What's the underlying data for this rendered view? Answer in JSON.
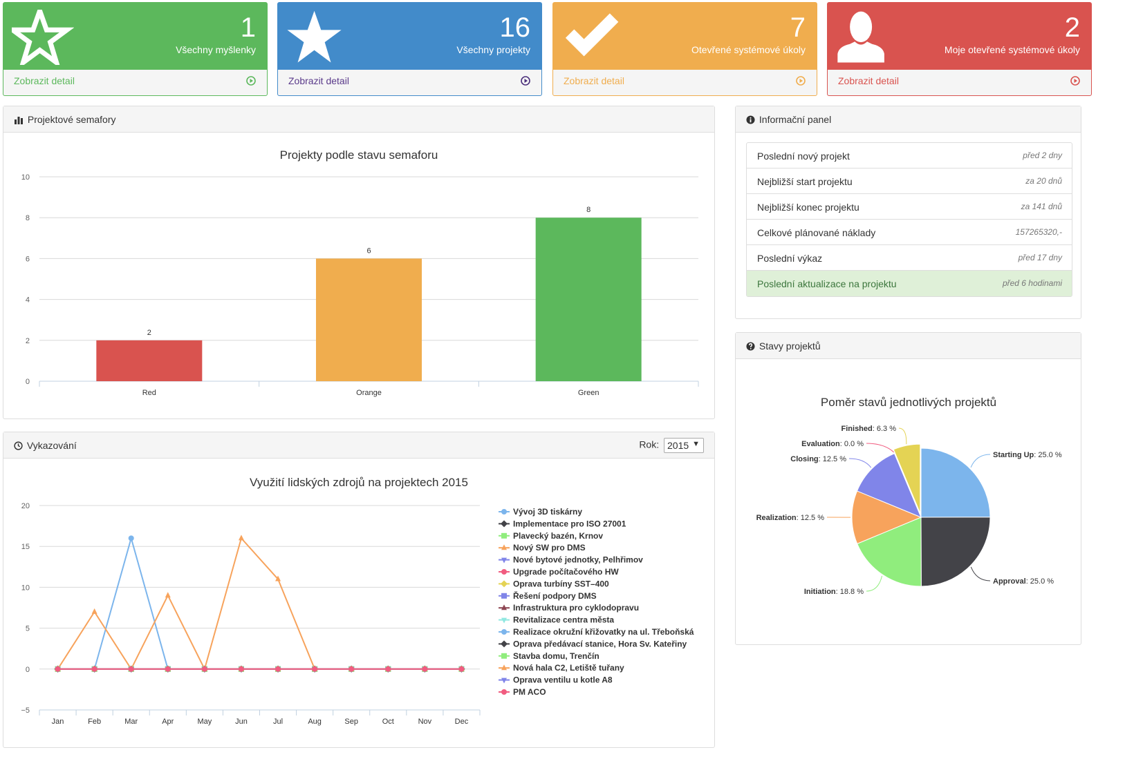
{
  "stats": [
    {
      "number": "1",
      "label": "Všechny myšlenky",
      "link": "Zobrazit detail",
      "icon": "star-outline-icon",
      "color": "#5cb85c"
    },
    {
      "number": "16",
      "label": "Všechny projekty",
      "link": "Zobrazit detail",
      "icon": "star-icon",
      "color": "#428bca"
    },
    {
      "number": "7",
      "label": "Otevřené systémové úkoly",
      "link": "Zobrazit detail",
      "icon": "check-icon",
      "color": "#f0ad4e"
    },
    {
      "number": "2",
      "label": "Moje otevřené systémové úkoly",
      "link": "Zobrazit detail",
      "icon": "user-icon",
      "color": "#d9534f"
    }
  ],
  "semafory": {
    "panel_title": "Projektové semafory",
    "icon": "bar-chart-icon"
  },
  "info": {
    "panel_title": "Informační panel",
    "icon": "info-icon",
    "rows": [
      {
        "label": "Poslední nový projekt",
        "value": "před 2 dny"
      },
      {
        "label": "Nejbližší start projektu",
        "value": "za 20 dnů"
      },
      {
        "label": "Nejbližší konec projektu",
        "value": "za 141 dnů"
      },
      {
        "label": "Celkové plánované náklady",
        "value": "157265320,-"
      },
      {
        "label": "Poslední výkaz",
        "value": "před 17 dny"
      },
      {
        "label": "Poslední aktualizace na projektu",
        "value": "před 6 hodinami"
      }
    ]
  },
  "vykazovani": {
    "panel_title": "Vykazování",
    "icon": "clock-icon",
    "year_label": "Rok:",
    "year_value": "2015"
  },
  "stavy": {
    "panel_title": "Stavy projektů",
    "icon": "question-icon"
  },
  "chart_data": [
    {
      "type": "bar",
      "title": "Projekty podle stavu semaforu",
      "categories": [
        "Red",
        "Orange",
        "Green"
      ],
      "values": [
        2,
        6,
        8
      ],
      "colors": [
        "#d9534f",
        "#f0ad4e",
        "#5cb85c"
      ],
      "ylim": [
        0,
        10
      ],
      "yticks": [
        0,
        2,
        4,
        6,
        8,
        10
      ],
      "grid": true,
      "data_labels": true
    },
    {
      "type": "line",
      "title": "Využití lidských zdrojů na projektech 2015",
      "categories": [
        "Jan",
        "Feb",
        "Mar",
        "Apr",
        "May",
        "Jun",
        "Jul",
        "Aug",
        "Sep",
        "Oct",
        "Nov",
        "Dec"
      ],
      "ylim": [
        -5,
        20
      ],
      "yticks": [
        -5,
        0,
        5,
        10,
        15,
        20
      ],
      "y_tick_labels": [
        "−5",
        "0",
        "5",
        "10",
        "15",
        "20"
      ],
      "grid": true,
      "legend": "right",
      "series": [
        {
          "name": "Vývoj 3D tiskárny",
          "color": "#7cb5ec",
          "marker": "circle",
          "values": [
            0,
            0,
            16,
            0,
            null,
            null,
            null,
            null,
            null,
            null,
            null,
            null
          ]
        },
        {
          "name": "Implementace pro ISO 27001",
          "color": "#434348",
          "marker": "diamond",
          "values": [
            0,
            0,
            0,
            0,
            0,
            0,
            0,
            0,
            0,
            0,
            0,
            0
          ]
        },
        {
          "name": "Plavecký bazén, Krnov",
          "color": "#90ed7d",
          "marker": "square",
          "values": [
            0,
            0,
            0,
            0,
            0,
            0,
            0,
            0,
            0,
            0,
            0,
            0
          ]
        },
        {
          "name": "Nový SW pro DMS",
          "color": "#f7a35c",
          "marker": "triangle",
          "values": [
            0,
            7,
            0,
            9,
            0,
            16,
            11,
            0,
            0,
            0,
            0,
            0
          ]
        },
        {
          "name": "Nové bytové jednotky, Pelhřimov",
          "color": "#8085e9",
          "marker": "triangle-down",
          "values": [
            0,
            0,
            0,
            0,
            0,
            0,
            0,
            0,
            0,
            0,
            0,
            0
          ]
        },
        {
          "name": "Upgrade počítačového HW",
          "color": "#f15c80",
          "marker": "circle",
          "values": [
            0,
            0,
            0,
            0,
            0,
            0,
            0,
            0,
            0,
            0,
            0,
            0
          ]
        },
        {
          "name": "Oprava turbíny SST–400",
          "color": "#e4d354",
          "marker": "diamond",
          "values": [
            0,
            0,
            0,
            0,
            0,
            0,
            0,
            0,
            0,
            0,
            0,
            0
          ]
        },
        {
          "name": "Řešení podpory DMS",
          "color": "#8085e8",
          "marker": "square",
          "values": [
            0,
            0,
            0,
            0,
            0,
            0,
            0,
            0,
            0,
            0,
            0,
            0
          ]
        },
        {
          "name": "Infrastruktura pro cyklodopravu",
          "color": "#8d4653",
          "marker": "triangle",
          "values": [
            0,
            0,
            0,
            0,
            0,
            0,
            0,
            0,
            0,
            0,
            0,
            0
          ]
        },
        {
          "name": "Revitalizace centra města",
          "color": "#91e8e1",
          "marker": "triangle-down",
          "values": [
            0,
            0,
            0,
            0,
            0,
            0,
            0,
            0,
            0,
            0,
            0,
            0
          ]
        },
        {
          "name": "Realizace okružní křižovatky na ul. Třeboňská",
          "color": "#7cb5ec",
          "marker": "circle",
          "values": [
            0,
            0,
            0,
            0,
            0,
            0,
            0,
            0,
            0,
            0,
            0,
            0
          ]
        },
        {
          "name": "Oprava předávací stanice, Hora Sv. Kateřiny",
          "color": "#434348",
          "marker": "diamond",
          "values": [
            0,
            0,
            0,
            0,
            0,
            0,
            0,
            0,
            0,
            0,
            0,
            0
          ]
        },
        {
          "name": "Stavba domu, Trenčín",
          "color": "#90ed7d",
          "marker": "square",
          "values": [
            0,
            0,
            0,
            0,
            0,
            0,
            0,
            0,
            0,
            0,
            0,
            0
          ]
        },
        {
          "name": "Nová hala C2, Letiště tuřany",
          "color": "#f7a35c",
          "marker": "triangle",
          "values": [
            0,
            0,
            0,
            0,
            0,
            0,
            0,
            0,
            0,
            0,
            0,
            0
          ]
        },
        {
          "name": "Oprava ventilu u kotle A8",
          "color": "#8085e9",
          "marker": "triangle-down",
          "values": [
            0,
            0,
            0,
            0,
            0,
            0,
            0,
            0,
            0,
            0,
            0,
            0
          ]
        },
        {
          "name": "PM ACO",
          "color": "#f15c80",
          "marker": "circle",
          "values": [
            0,
            0,
            0,
            0,
            0,
            0,
            0,
            0,
            0,
            0,
            0,
            0
          ]
        }
      ]
    },
    {
      "type": "pie",
      "title": "Poměr stavů jednotlivých projektů",
      "slices": [
        {
          "name": "Starting Up",
          "value": 25.0,
          "label": "25.0 %",
          "color": "#7cb5ec"
        },
        {
          "name": "Approval",
          "value": 25.0,
          "label": "25.0 %",
          "color": "#434348"
        },
        {
          "name": "Initiation",
          "value": 18.8,
          "label": "18.8 %",
          "color": "#90ed7d"
        },
        {
          "name": "Realization",
          "value": 12.5,
          "label": "12.5 %",
          "color": "#f7a35c"
        },
        {
          "name": "Closing",
          "value": 12.5,
          "label": "12.5 %",
          "color": "#8085e9"
        },
        {
          "name": "Evaluation",
          "value": 0.0,
          "label": "0.0 %",
          "color": "#f15c80"
        },
        {
          "name": "Finished",
          "value": 6.3,
          "label": "6.3 %",
          "color": "#e4d354"
        }
      ]
    }
  ]
}
